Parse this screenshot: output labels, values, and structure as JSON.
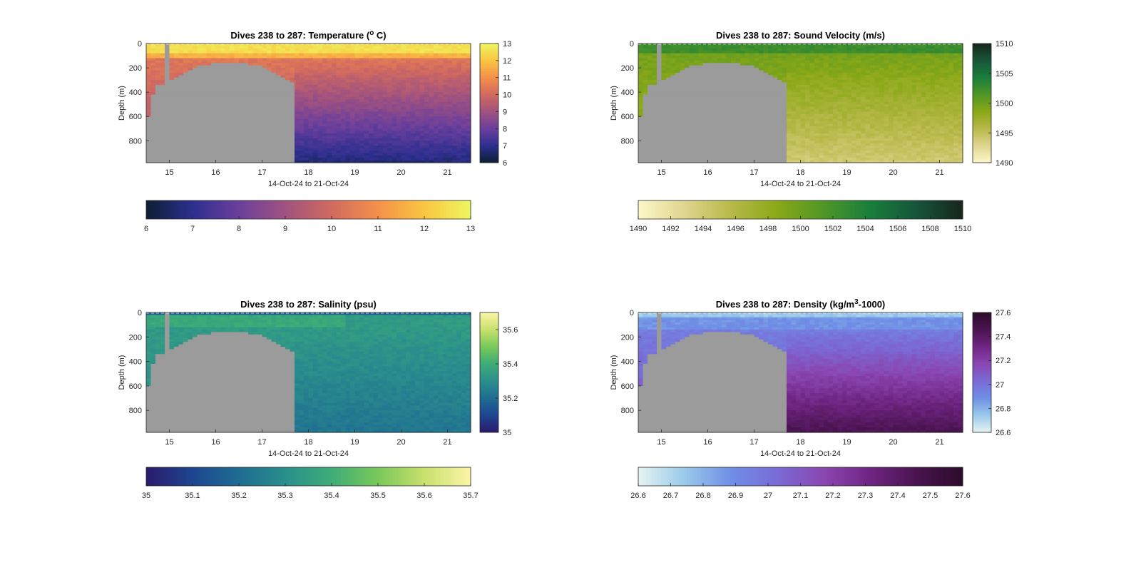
{
  "common": {
    "ylabel": "Depth (m)",
    "xlabel": "14-Oct-24 to 21-Oct-24",
    "x_range_days": [
      14.5,
      21.5
    ],
    "x_ticks": [
      "15",
      "16",
      "17",
      "18",
      "19",
      "20",
      "21"
    ],
    "x_tick_values": [
      15,
      16,
      17,
      18,
      19,
      20,
      21
    ],
    "y_range_m": [
      0,
      980
    ],
    "y_ticks": [
      "0",
      "200",
      "400",
      "600",
      "800"
    ],
    "y_tick_values": [
      0,
      200,
      400,
      600,
      800
    ],
    "no_data_color": "#9b9b9b"
  },
  "chart_data": [
    {
      "type": "heatmap",
      "title_prefix": "Dives 238 to 287: Temperature (",
      "title_sup": "o",
      "title_suffix": " C)",
      "variable": "temperature",
      "clim": [
        6,
        13
      ],
      "colorbar_ticks": [
        "6",
        "7",
        "8",
        "9",
        "10",
        "11",
        "12",
        "13"
      ],
      "colorbar_tick_values": [
        6,
        7,
        8,
        9,
        10,
        11,
        12,
        13
      ],
      "colormap": [
        "#0b1f33",
        "#2e2f8f",
        "#6b3f9c",
        "#a1527f",
        "#d16a5f",
        "#f5904a",
        "#f9c641",
        "#eef760"
      ]
    },
    {
      "type": "heatmap",
      "title_prefix": "Dives 238 to 287: Sound Velocity (m/s)",
      "title_sup": "",
      "title_suffix": "",
      "variable": "sound_velocity",
      "clim": [
        1490,
        1510
      ],
      "colorbar_ticks": [
        "1490",
        "1492",
        "1494",
        "1496",
        "1498",
        "1500",
        "1502",
        "1504",
        "1506",
        "1508",
        "1510"
      ],
      "colorbar_tick_values": [
        1490,
        1492,
        1494,
        1496,
        1498,
        1500,
        1502,
        1504,
        1506,
        1508,
        1510
      ],
      "colormap": [
        "#fdf7c9",
        "#dfd58f",
        "#b8b94a",
        "#8aa817",
        "#4f9626",
        "#197e3c",
        "#16553a",
        "#16261b"
      ]
    },
    {
      "type": "heatmap",
      "title_prefix": "Dives 238 to 287: Salinity (psu)",
      "title_sup": "",
      "title_suffix": "",
      "variable": "salinity",
      "clim": [
        35,
        35.7
      ],
      "colorbar_ticks": [
        "35",
        "35.1",
        "35.2",
        "35.3",
        "35.4",
        "35.5",
        "35.6",
        "35.7"
      ],
      "colorbar_tick_values": [
        35,
        35.1,
        35.2,
        35.3,
        35.4,
        35.5,
        35.6,
        35.7
      ],
      "colormap": [
        "#2b1a6c",
        "#1d4690",
        "#1f6d92",
        "#2a8f8c",
        "#3eac77",
        "#79c95a",
        "#c9e06e",
        "#fbf5a6"
      ]
    },
    {
      "type": "heatmap",
      "title_prefix": "Dives 238 to 287: Density (kg/m",
      "title_sup": "3",
      "title_suffix": "-1000)",
      "variable": "density",
      "clim": [
        26.6,
        27.6
      ],
      "colorbar_ticks": [
        "26.6",
        "26.7",
        "26.8",
        "26.9",
        "27",
        "27.1",
        "27.2",
        "27.3",
        "27.4",
        "27.5",
        "27.6"
      ],
      "colorbar_tick_values": [
        26.6,
        26.7,
        26.8,
        26.9,
        27,
        27.1,
        27.2,
        27.3,
        27.4,
        27.5,
        27.6
      ],
      "right_colorbar_ticks": [
        "26.6",
        "26.8",
        "27",
        "27.2",
        "27.4",
        "27.6"
      ],
      "right_colorbar_tick_values": [
        26.6,
        26.8,
        27,
        27.2,
        27.4,
        27.6
      ],
      "colormap": [
        "#e6f4f2",
        "#99c9ea",
        "#6f8fe6",
        "#7a6bd6",
        "#8a46b1",
        "#6f2582",
        "#4a1450",
        "#2c0b2a"
      ]
    }
  ],
  "right_colorbar_ticks": [
    [
      "6",
      "7",
      "8",
      "9",
      "10",
      "11",
      "12",
      "13"
    ],
    [
      "1490",
      "1495",
      "1500",
      "1505",
      "1510"
    ],
    [
      "35",
      "35.2",
      "35.4",
      "35.6"
    ],
    [
      "26.6",
      "26.8",
      "27",
      "27.2",
      "27.4",
      "27.6"
    ]
  ],
  "right_colorbar_tick_values": [
    [
      6,
      7,
      8,
      9,
      10,
      11,
      12,
      13
    ],
    [
      1490,
      1495,
      1500,
      1505,
      1510
    ],
    [
      35,
      35.2,
      35.4,
      35.6
    ],
    [
      26.6,
      26.8,
      27,
      27.2,
      27.4,
      27.6
    ]
  ]
}
